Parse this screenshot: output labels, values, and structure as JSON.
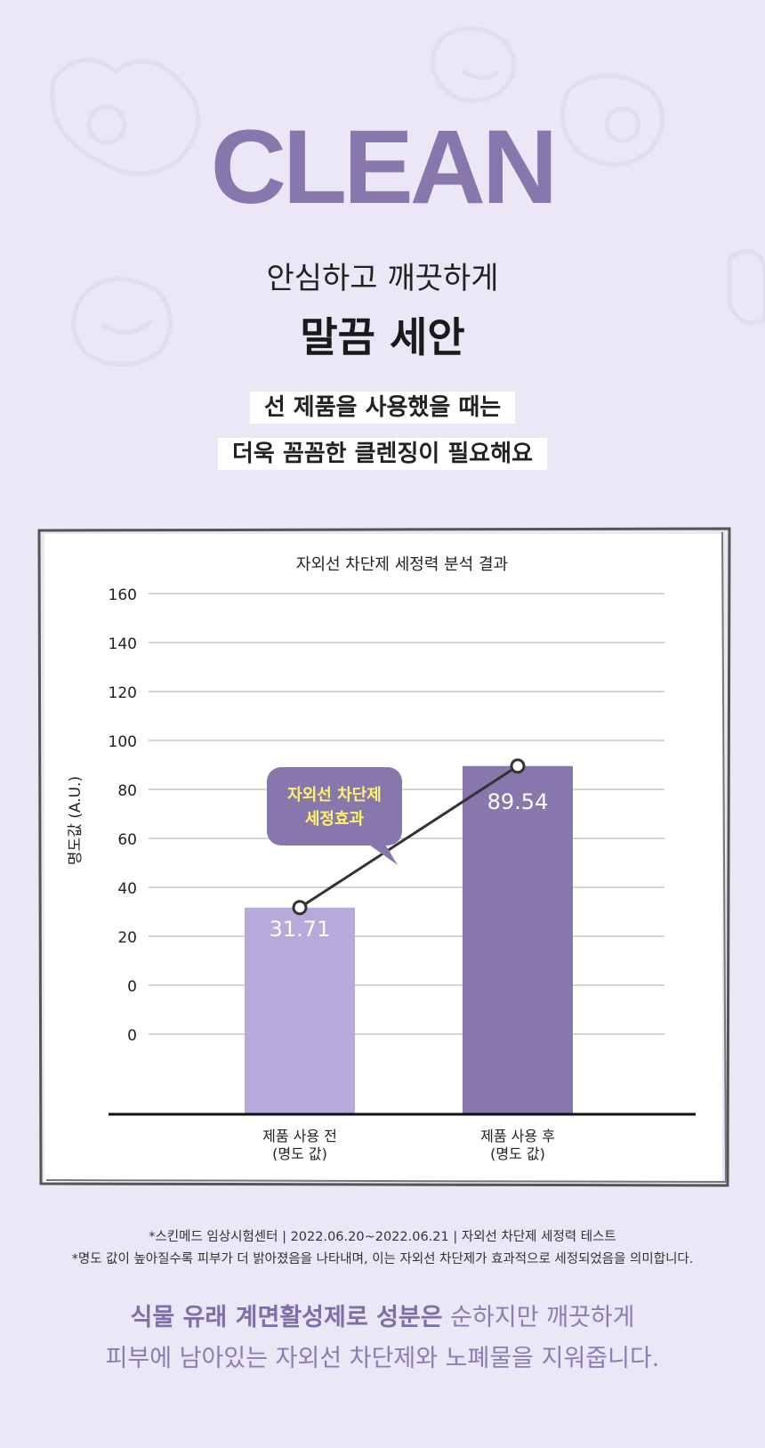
{
  "headline": "CLEAN",
  "subtitle_line1": "안심하고 깨끗하게",
  "subtitle_line2": "말끔 세안",
  "tagline_line1": "선 제품을 사용했을 때는",
  "tagline_line2": "더욱 꼼꼼한 클렌징이 필요해요",
  "callout": {
    "line1": "자외선 차단제",
    "line2": "세정효과"
  },
  "footnote_line1": "*스킨메드 임상시험센터 | 2022.06.20~2022.06.21 | 자외선 차단제 세정력 테스트",
  "footnote_line2": "*명도 값이 높아질수록 피부가 더 밝아졌음을 나타내며, 이는 자외선 차단제가 효과적으로 세정되었음을 의미합니다.",
  "bottom_line1_bold": "식물 유래 계면활성제로 성분은",
  "bottom_line1_rest": " 순하지만 깨끗하게",
  "bottom_line2": "피부에 남아있는 자외선 차단제와 노폐물을 지워줍니다.",
  "colors": {
    "accent": "#8777ad",
    "bar_before": "#b7a9da",
    "bar_after": "#8777ad",
    "callout_text": "#fff36b"
  },
  "chart_data": {
    "type": "bar",
    "title": "자외선 차단제 세정력 분석 결과",
    "ylabel": "명도값 (A.U.)",
    "categories": [
      [
        "제품 사용 전",
        "(명도 값)"
      ],
      [
        "제품 사용 후",
        "(명도 값)"
      ]
    ],
    "values": [
      31.71,
      89.54
    ],
    "value_labels": [
      "31.71",
      "89.54"
    ],
    "yticks": [
      "160",
      "140",
      "120",
      "100",
      "80",
      "60",
      "40",
      "20",
      "0",
      "0"
    ],
    "ylim": [
      0,
      160
    ],
    "grid": true,
    "overlay_line": true
  }
}
